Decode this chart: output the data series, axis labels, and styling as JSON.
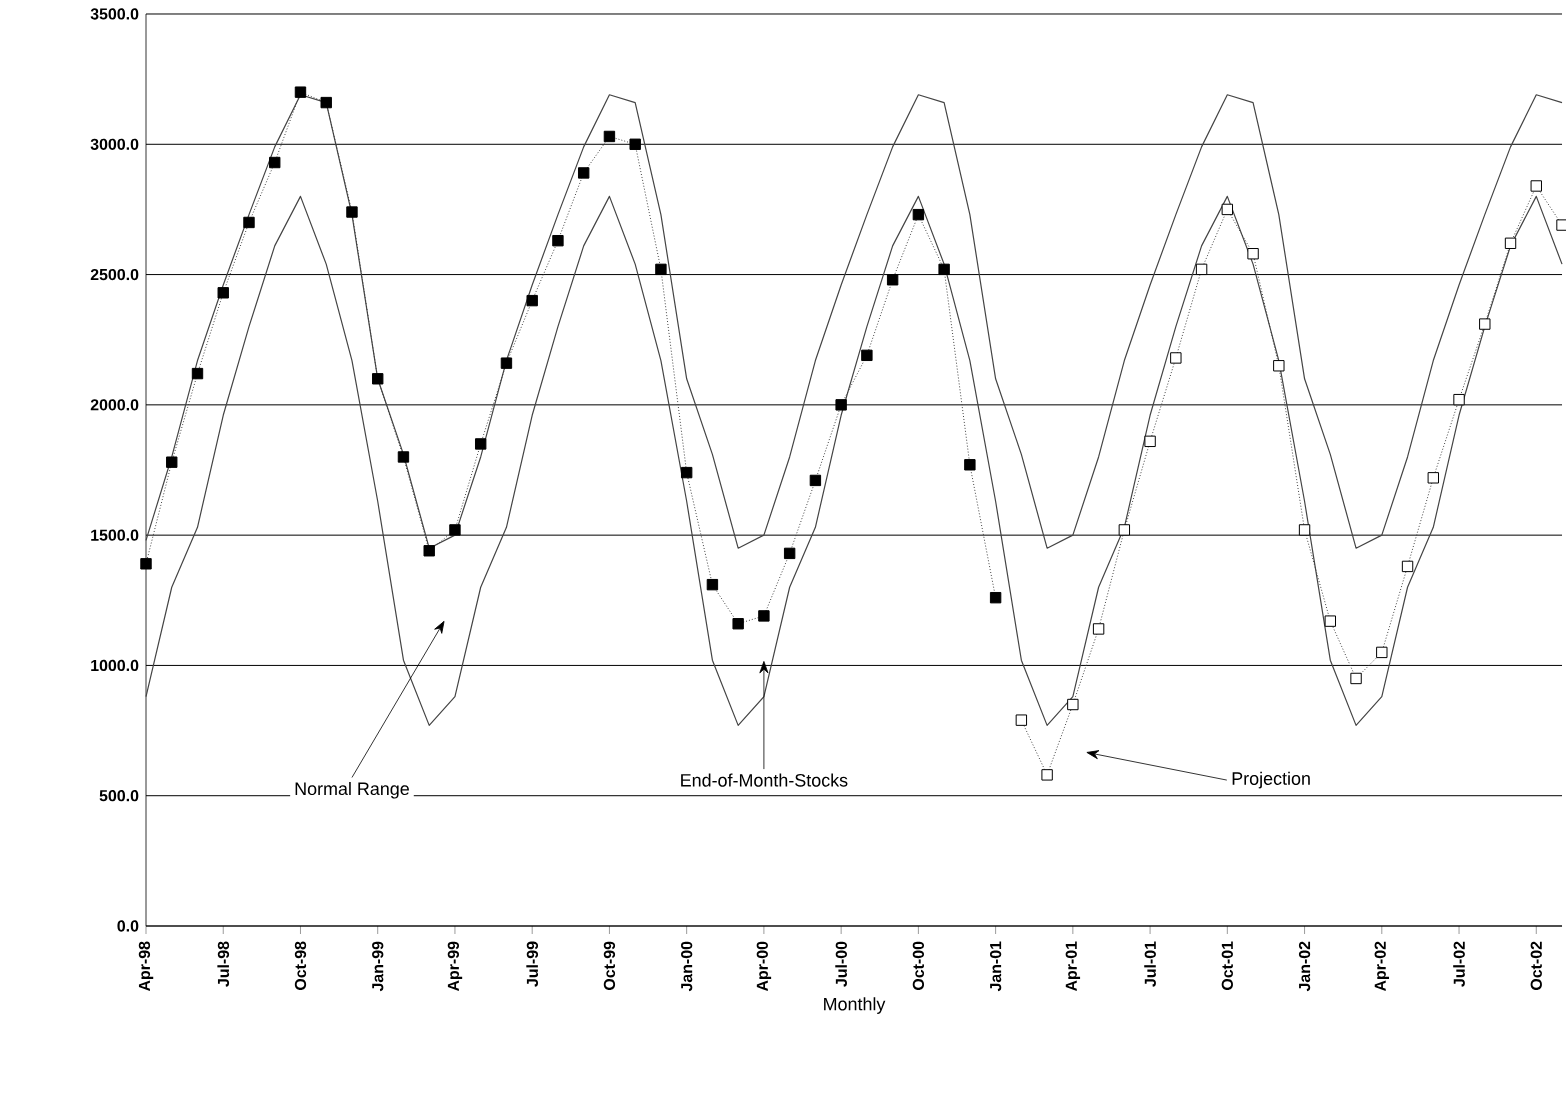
{
  "chart_data": {
    "type": "line",
    "xlabel": "Monthly",
    "xlim": [
      "1998-04",
      "2002-11"
    ],
    "ylim": [
      0,
      3500
    ],
    "yticks": [
      {
        "value": 0,
        "label": "0.0"
      },
      {
        "value": 500,
        "label": "500.0"
      },
      {
        "value": 1000,
        "label": "1000.0"
      },
      {
        "value": 1500,
        "label": "1500.0"
      },
      {
        "value": 2000,
        "label": "2000.0"
      },
      {
        "value": 2500,
        "label": "2500.0"
      },
      {
        "value": 3000,
        "label": "3000.0"
      },
      {
        "value": 3500,
        "label": "3500.0"
      }
    ],
    "xticks": [
      {
        "value": "1998-04",
        "label": "Apr-98"
      },
      {
        "value": "1998-07",
        "label": "Jul-98"
      },
      {
        "value": "1998-10",
        "label": "Oct-98"
      },
      {
        "value": "1999-01",
        "label": "Jan-99"
      },
      {
        "value": "1999-04",
        "label": "Apr-99"
      },
      {
        "value": "1999-07",
        "label": "Jul-99"
      },
      {
        "value": "1999-10",
        "label": "Oct-99"
      },
      {
        "value": "2000-01",
        "label": "Jan-00"
      },
      {
        "value": "2000-04",
        "label": "Apr-00"
      },
      {
        "value": "2000-07",
        "label": "Jul-00"
      },
      {
        "value": "2000-10",
        "label": "Oct-00"
      },
      {
        "value": "2001-01",
        "label": "Jan-01"
      },
      {
        "value": "2001-04",
        "label": "Apr-01"
      },
      {
        "value": "2001-07",
        "label": "Jul-01"
      },
      {
        "value": "2001-10",
        "label": "Oct-01"
      },
      {
        "value": "2002-01",
        "label": "Jan-02"
      },
      {
        "value": "2002-04",
        "label": "Apr-02"
      },
      {
        "value": "2002-07",
        "label": "Jul-02"
      },
      {
        "value": "2002-10",
        "label": "Oct-02"
      }
    ],
    "grid": "y",
    "series": [
      {
        "color": "#444444",
        "marker": "none",
        "line_style": "solid",
        "x": [
          "1998-04",
          "1998-05",
          "1998-06",
          "1998-07",
          "1998-08",
          "1998-09",
          "1998-10",
          "1998-11",
          "1998-12",
          "1999-01",
          "1999-02",
          "1999-03",
          "1999-04",
          "1999-05",
          "1999-06",
          "1999-07",
          "1999-08",
          "1999-09",
          "1999-10",
          "1999-11",
          "1999-12",
          "2000-01",
          "2000-02",
          "2000-03",
          "2000-04",
          "2000-05",
          "2000-06",
          "2000-07",
          "2000-08",
          "2000-09",
          "2000-10",
          "2000-11",
          "2000-12",
          "2001-01",
          "2001-02",
          "2001-03",
          "2001-04",
          "2001-05",
          "2001-06",
          "2001-07",
          "2001-08",
          "2001-09",
          "2001-10",
          "2001-11",
          "2001-12",
          "2002-01",
          "2002-02",
          "2002-03",
          "2002-04",
          "2002-05",
          "2002-06",
          "2002-07",
          "2002-08",
          "2002-09",
          "2002-10",
          "2002-11"
        ],
        "values": [
          1480,
          1800,
          2170,
          2460,
          2730,
          2990,
          3190,
          3160,
          2730,
          2100,
          1810,
          1450,
          1500,
          1800,
          2170,
          2460,
          2730,
          2990,
          3190,
          3160,
          2730,
          2100,
          1810,
          1450,
          1500,
          1800,
          2170,
          2460,
          2730,
          2990,
          3190,
          3160,
          2730,
          2100,
          1810,
          1450,
          1500,
          1800,
          2170,
          2460,
          2730,
          2990,
          3190,
          3160,
          2730,
          2100,
          1810,
          1450,
          1500,
          1800,
          2170,
          2460,
          2730,
          2990,
          3190,
          3160
        ]
      },
      {
        "color": "#444444",
        "marker": "none",
        "line_style": "solid",
        "x": [
          "1998-04",
          "1998-05",
          "1998-06",
          "1998-07",
          "1998-08",
          "1998-09",
          "1998-10",
          "1998-11",
          "1998-12",
          "1999-01",
          "1999-02",
          "1999-03",
          "1999-04",
          "1999-05",
          "1999-06",
          "1999-07",
          "1999-08",
          "1999-09",
          "1999-10",
          "1999-11",
          "1999-12",
          "2000-01",
          "2000-02",
          "2000-03",
          "2000-04",
          "2000-05",
          "2000-06",
          "2000-07",
          "2000-08",
          "2000-09",
          "2000-10",
          "2000-11",
          "2000-12",
          "2001-01",
          "2001-02",
          "2001-03",
          "2001-04",
          "2001-05",
          "2001-06",
          "2001-07",
          "2001-08",
          "2001-09",
          "2001-10",
          "2001-11",
          "2001-12",
          "2002-01",
          "2002-02",
          "2002-03",
          "2002-04",
          "2002-05",
          "2002-06",
          "2002-07",
          "2002-08",
          "2002-09",
          "2002-10",
          "2002-11"
        ],
        "values": [
          880,
          1300,
          1530,
          1960,
          2300,
          2610,
          2800,
          2540,
          2170,
          1630,
          1020,
          770,
          880,
          1300,
          1530,
          1960,
          2300,
          2610,
          2800,
          2540,
          2170,
          1630,
          1020,
          770,
          880,
          1300,
          1530,
          1960,
          2300,
          2610,
          2800,
          2540,
          2170,
          1630,
          1020,
          770,
          880,
          1300,
          1530,
          1960,
          2300,
          2610,
          2800,
          2540,
          2170,
          1630,
          1020,
          770,
          880,
          1300,
          1530,
          1960,
          2300,
          2610,
          2800,
          2540
        ]
      },
      {
        "color": "#000000",
        "marker": "square",
        "line_style": "dotted",
        "x": [
          "1998-04",
          "1998-05",
          "1998-06",
          "1998-07",
          "1998-08",
          "1998-09",
          "1998-10",
          "1998-11",
          "1998-12",
          "1999-01",
          "1999-02",
          "1999-03",
          "1999-04",
          "1999-05",
          "1999-06",
          "1999-07",
          "1999-08",
          "1999-09",
          "1999-10",
          "1999-11",
          "1999-12",
          "2000-01",
          "2000-02",
          "2000-03",
          "2000-04",
          "2000-05",
          "2000-06",
          "2000-07",
          "2000-08",
          "2000-09",
          "2000-10",
          "2000-11",
          "2000-12",
          "2001-01"
        ],
        "values": [
          1390,
          1780,
          2120,
          2430,
          2700,
          2930,
          3200,
          3160,
          2740,
          2100,
          1800,
          1440,
          1520,
          1850,
          2160,
          2400,
          2630,
          2890,
          3030,
          3000,
          2520,
          1740,
          1310,
          1160,
          1190,
          1430,
          1710,
          2000,
          2190,
          2480,
          2730,
          2520,
          1770,
          1260
        ]
      },
      {
        "color": "#ffffff",
        "marker": "square",
        "line_style": "dotted",
        "x": [
          "2001-02",
          "2001-03",
          "2001-04",
          "2001-05",
          "2001-06",
          "2001-07",
          "2001-08",
          "2001-09",
          "2001-10",
          "2001-11",
          "2001-12",
          "2002-01",
          "2002-02",
          "2002-03",
          "2002-04",
          "2002-05",
          "2002-06",
          "2002-07",
          "2002-08",
          "2002-09",
          "2002-10",
          "2002-11"
        ],
        "values": [
          790,
          580,
          850,
          1140,
          1520,
          1860,
          2180,
          2520,
          2750,
          2580,
          2150,
          1520,
          1170,
          950,
          1050,
          1380,
          1720,
          2020,
          2310,
          2620,
          2840,
          2690
        ]
      }
    ],
    "annotations": [
      "Normal Range",
      {
        "text": "End-of-Month-Stocks",
        "x": "2000-04",
        "y": 1020
      },
      "Projection"
    ]
  }
}
